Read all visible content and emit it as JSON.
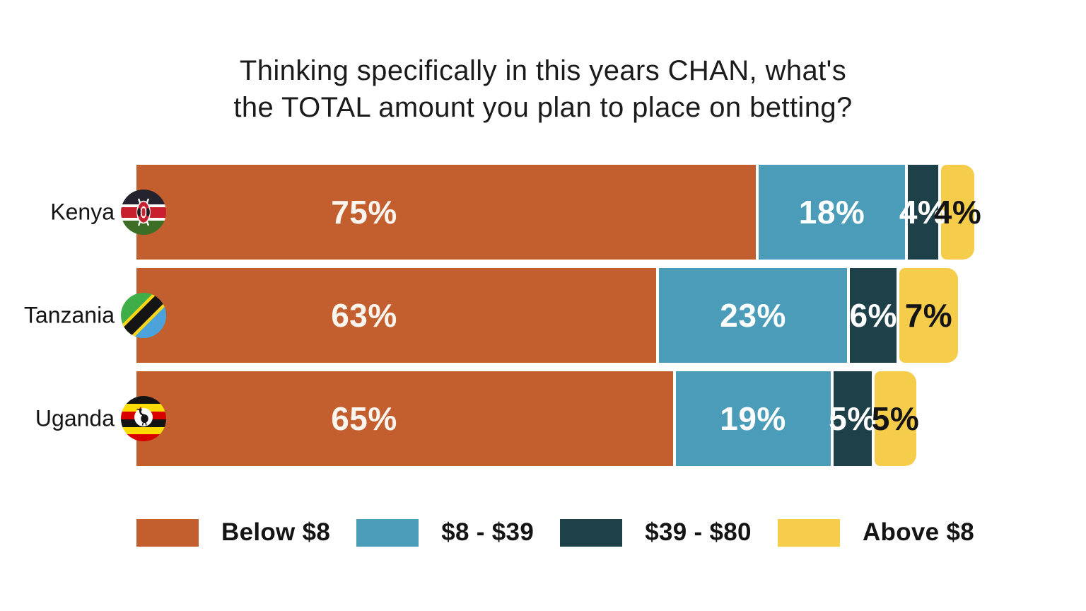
{
  "title_lines": [
    "Thinking specifically in this years CHAN, what's",
    "the TOTAL amount you plan to place on betting?"
  ],
  "chart_data": {
    "type": "bar",
    "orientation": "horizontal",
    "stacked": true,
    "title": "Thinking specifically in this years CHAN, what's the TOTAL amount you plan to place on betting?",
    "categories": [
      "Kenya",
      "Tanzania",
      "Uganda"
    ],
    "series": [
      {
        "name": "Below $8",
        "color": "#C35F2E",
        "label_color": "#FAF5EF",
        "values": [
          75,
          63,
          65
        ]
      },
      {
        "name": "$8 - $39",
        "color": "#4A9CB8",
        "label_color": "#FFFFFF",
        "values": [
          18,
          23,
          19
        ]
      },
      {
        "name": "$39 - $80",
        "color": "#1E4149",
        "label_color": "#FFFFFF",
        "values": [
          4,
          6,
          5
        ]
      },
      {
        "name": "Above $8",
        "color": "#F6CD4B",
        "label_color": "#141414",
        "values": [
          4,
          7,
          5
        ]
      }
    ],
    "value_labels": [
      [
        "75%",
        "18%",
        "4%",
        "4%"
      ],
      [
        "63%",
        "23%",
        "6%",
        "7%"
      ],
      [
        "65%",
        "19%",
        "5%",
        "5%"
      ]
    ],
    "value_suffix": "%",
    "xlim": [
      0,
      101
    ],
    "grid": false,
    "legend_position": "bottom"
  },
  "rows": [
    {
      "country": "Kenya",
      "flag_icon": "kenya-flag-icon"
    },
    {
      "country": "Tanzania",
      "flag_icon": "tanzania-flag-icon"
    },
    {
      "country": "Uganda",
      "flag_icon": "uganda-flag-icon"
    }
  ],
  "legend": {
    "items": [
      {
        "label": "Below $8",
        "color": "#C35F2E"
      },
      {
        "label": "$8 - $39",
        "color": "#4A9CB8"
      },
      {
        "label": "$39 - $80",
        "color": "#1E4149"
      },
      {
        "label": "Above $8",
        "color": "#F6CD4B"
      }
    ]
  }
}
